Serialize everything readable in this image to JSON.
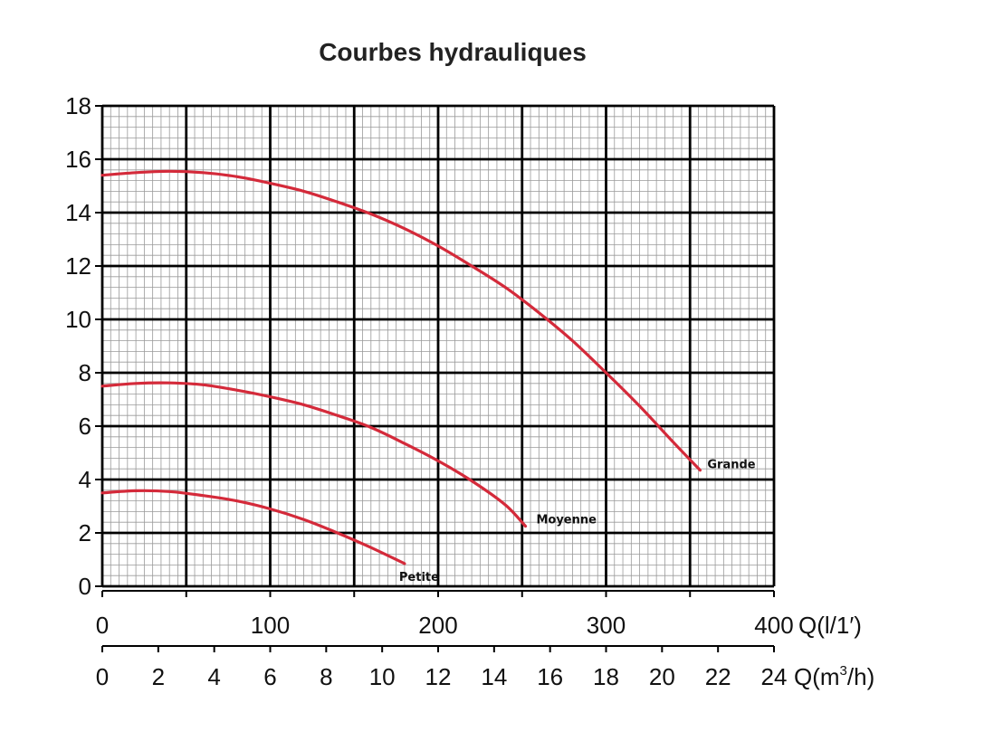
{
  "chart_data": {
    "type": "line",
    "title": "Courbes hydrauliques",
    "y_ticks": [
      "0",
      "2",
      "4",
      "6",
      "8",
      "10",
      "12",
      "14",
      "16",
      "18"
    ],
    "ylim": [
      0,
      18
    ],
    "x_axis_primary": {
      "label": "Q(l/1′)",
      "ticks": [
        "0",
        "100",
        "200",
        "300",
        "400"
      ],
      "xlim": [
        0,
        400
      ]
    },
    "x_axis_secondary": {
      "label_main": "Q(m",
      "label_sup": "3",
      "label_end": "/h)",
      "ticks": [
        "0",
        "2",
        "4",
        "6",
        "8",
        "10",
        "12",
        "14",
        "16",
        "18",
        "20",
        "22",
        "24"
      ],
      "xlim": [
        0,
        24
      ]
    },
    "grid": true,
    "series_color": "#d42a3a",
    "series": [
      {
        "name": "Grande",
        "x": [
          0,
          20,
          40,
          60,
          80,
          100,
          120,
          140,
          160,
          180,
          200,
          220,
          240,
          260,
          280,
          300,
          320,
          340,
          356
        ],
        "y": [
          15.4,
          15.5,
          15.55,
          15.5,
          15.35,
          15.1,
          14.8,
          14.4,
          13.95,
          13.4,
          12.75,
          12.0,
          11.2,
          10.25,
          9.2,
          8.0,
          6.75,
          5.4,
          4.35
        ]
      },
      {
        "name": "Moyenne",
        "x": [
          0,
          20,
          40,
          60,
          80,
          100,
          120,
          140,
          160,
          180,
          200,
          220,
          240,
          252
        ],
        "y": [
          7.5,
          7.6,
          7.62,
          7.55,
          7.35,
          7.1,
          6.8,
          6.4,
          5.95,
          5.35,
          4.7,
          3.95,
          3.05,
          2.25
        ]
      },
      {
        "name": "Petite",
        "x": [
          0,
          20,
          40,
          60,
          80,
          100,
          120,
          140,
          160,
          180
        ],
        "y": [
          3.5,
          3.58,
          3.55,
          3.4,
          3.2,
          2.9,
          2.5,
          2.0,
          1.45,
          0.85
        ]
      }
    ]
  }
}
